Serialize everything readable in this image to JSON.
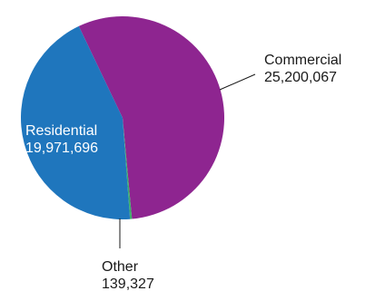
{
  "chart_data": {
    "type": "pie",
    "slices": [
      {
        "label": "Commercial",
        "value_text": "25,200,067",
        "value": 25200067,
        "color": "#8e2590"
      },
      {
        "label": "Other",
        "value_text": "139,327",
        "value": 139327,
        "color": "#3cae6a"
      },
      {
        "label": "Residential",
        "value_text": "19,971,696",
        "value": 19971696,
        "color": "#1f76bd"
      }
    ],
    "start_angle_deg": -25.5,
    "direction": "clockwise",
    "legend": "none",
    "label_placement": {
      "Commercial": "outside-right",
      "Other": "outside-bottom",
      "Residential": "inside-left"
    },
    "title": ""
  }
}
